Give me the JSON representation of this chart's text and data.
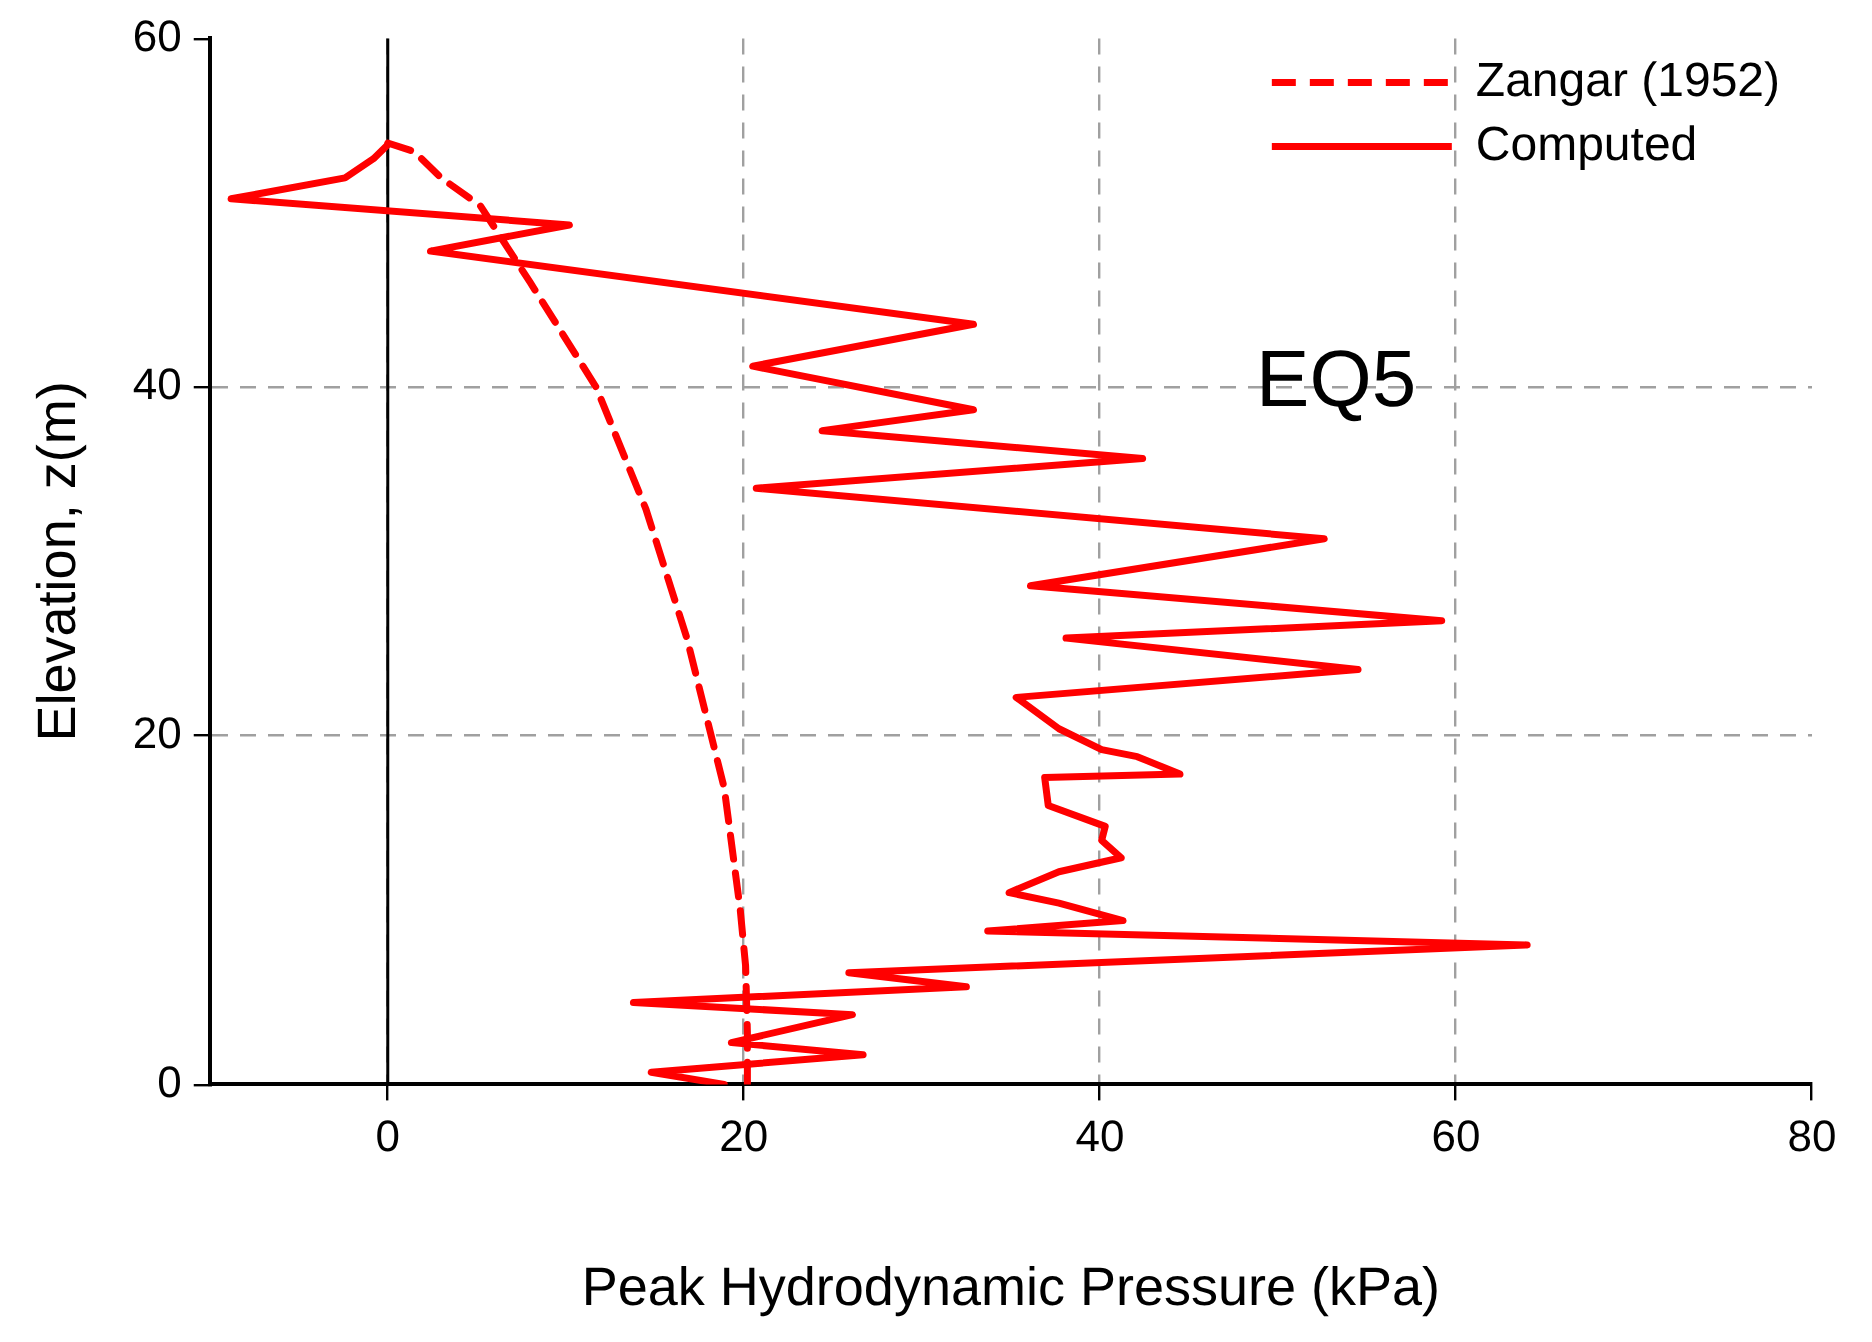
{
  "chart_data": {
    "type": "line",
    "xlabel": "Peak Hydrodynamic Pressure (kPa)",
    "ylabel": "Elevation, z(m)",
    "xlim": [
      -10,
      80
    ],
    "xticks": [
      0,
      20,
      40,
      60,
      80
    ],
    "ylim": [
      0,
      60
    ],
    "yticks": [
      0,
      20,
      40,
      60
    ],
    "grid": true,
    "legend": "top right",
    "marker": "none",
    "annotations": [
      "EQ5"
    ],
    "ref_lines": [
      {
        "axis": "x",
        "value": 0,
        "color": "#000000"
      }
    ],
    "series": [
      {
        "name": "Zangar (1952)",
        "color": "#ff0000",
        "line_style": "dashed",
        "x": [
          0,
          1.5,
          3,
          5.2,
          8,
          11.7,
          14.5,
          16.8,
          18.9,
          19.8,
          20.1,
          20.2,
          20.2
        ],
        "values": [
          54,
          53.5,
          52,
          50.4,
          46,
          40,
          33,
          25.6,
          17,
          10,
          6.8,
          3,
          0
        ]
      },
      {
        "name": "Computed",
        "color": "#ff0000",
        "line_style": "solid",
        "x": [
          18.9,
          14.8,
          26.7,
          19.3,
          26.1,
          13.8,
          32.5,
          25.9,
          64.0,
          33.7,
          41.3,
          37.7,
          34.9,
          37.7,
          41.2,
          40.1,
          40.3,
          37.1,
          36.9,
          44.5,
          42.1,
          40.1,
          37.7,
          35.3,
          54.5,
          38.1,
          59.2,
          36.1,
          52.6,
          20.7,
          42.4,
          24.4,
          32.9,
          20.5,
          32.9,
          2.4,
          10.2,
          -8.8,
          -2.4,
          -0.8,
          0
        ],
        "values": [
          0,
          0.7,
          1.7,
          2.4,
          4.0,
          4.7,
          5.6,
          6.4,
          8.0,
          8.8,
          9.4,
          10.4,
          11.0,
          12.2,
          13.0,
          14.0,
          14.8,
          16.0,
          17.6,
          17.8,
          18.8,
          19.2,
          20.4,
          22.2,
          23.8,
          25.6,
          26.6,
          28.6,
          31.3,
          34.2,
          35.9,
          37.5,
          38.7,
          41.2,
          43.6,
          47.8,
          49.3,
          50.8,
          52.0,
          53.1,
          53.9
        ]
      }
    ]
  }
}
